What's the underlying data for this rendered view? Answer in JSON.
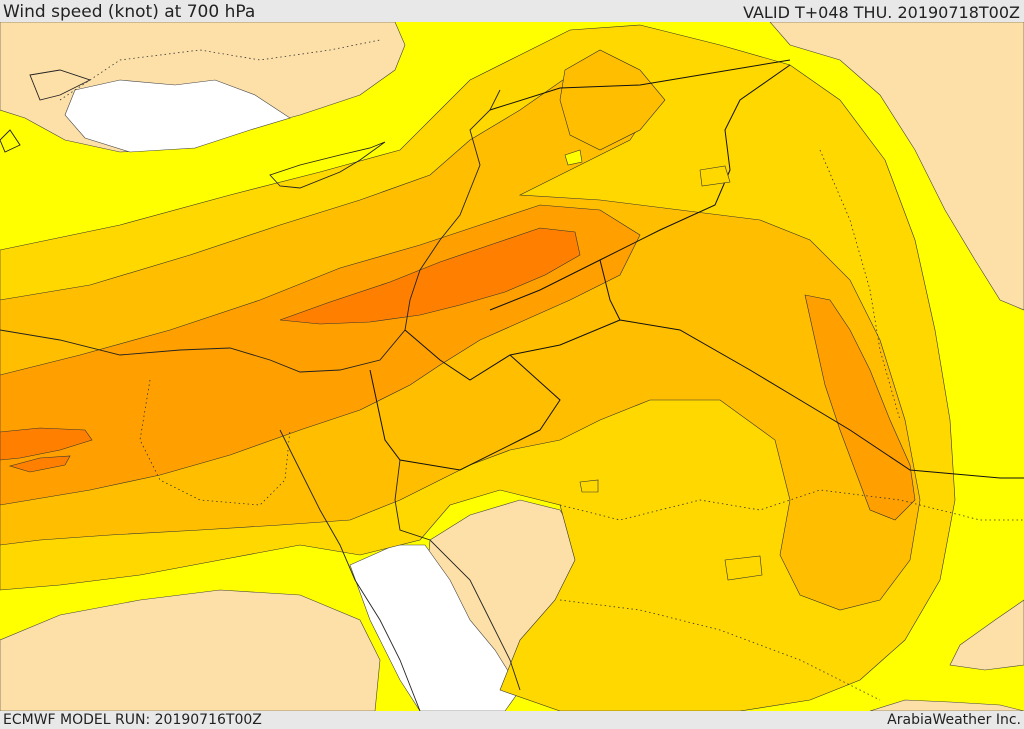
{
  "header": {
    "title": "Wind speed (knot) at 700 hPa",
    "valid": "VALID T+048 THU. 20190718T00Z"
  },
  "footer": {
    "model_run": "ECMWF MODEL RUN: 20190716T00Z",
    "credit": "ArabiaWeather Inc."
  },
  "colors": {
    "band_lowest": "#ffffff",
    "band_low": "#fde0a8",
    "band_mid_low": "#ffff00",
    "band_mid": "#ffd800",
    "band_mid_high": "#ffbf00",
    "band_high": "#ff9f00",
    "band_highest": "#ff8000",
    "border": "#111111"
  }
}
